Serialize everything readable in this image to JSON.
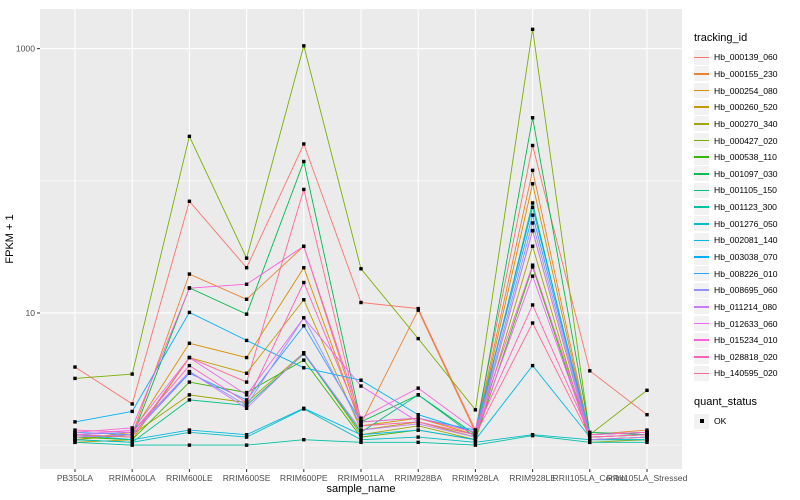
{
  "chart_data": {
    "type": "line",
    "title": "",
    "xlabel": "sample_name",
    "ylabel": "FPKM + 1",
    "y_scale": "log10",
    "ylim": [
      0.66,
      1995
    ],
    "y_ticks": [
      10,
      1000
    ],
    "y_tick_labels": [
      "10",
      "1000"
    ],
    "y_minor_gridlines": [
      1,
      100
    ],
    "grid": true,
    "legend_position": "right",
    "legend_title": "tracking_id",
    "quant_legend": {
      "title": "quant_status",
      "items": [
        "OK"
      ]
    },
    "point_shape": "filled-square",
    "x_categories": [
      "PB350LA",
      "RRIM600LA",
      "RRIM600LE",
      "RRIM600SE",
      "RRIM600PE",
      "RRIM901LA",
      "RRIM928BA",
      "RRIM928LA",
      "RRIM928LE",
      "RRII105LA_Control",
      "RRII105LA_Stressed"
    ],
    "series": [
      {
        "name": "Hb_000139_060",
        "color": "#F8766D",
        "values": [
          3.9,
          2.05,
          70,
          22,
          190,
          12,
          10.8,
          1.3,
          185,
          3.65,
          1.7
        ]
      },
      {
        "name": "Hb_000155_230",
        "color": "#EA8331",
        "values": [
          1.15,
          1.2,
          19.7,
          12.7,
          32,
          1.45,
          10.5,
          1.25,
          120,
          1.2,
          1.3
        ]
      },
      {
        "name": "Hb_000254_080",
        "color": "#D89000",
        "values": [
          1.1,
          1.25,
          5.9,
          4.6,
          22,
          1.4,
          1.6,
          1.2,
          95,
          1.15,
          1.2
        ]
      },
      {
        "name": "Hb_000260_520",
        "color": "#C09B00",
        "values": [
          1.05,
          1.1,
          4.6,
          3.5,
          12.6,
          1.3,
          1.5,
          1.15,
          42,
          1.1,
          1.15
        ]
      },
      {
        "name": "Hb_000270_340",
        "color": "#A3A500",
        "values": [
          1.1,
          1.2,
          2.4,
          2.1,
          5.0,
          1.2,
          1.4,
          1.1,
          32,
          1.05,
          1.1
        ]
      },
      {
        "name": "Hb_000427_020",
        "color": "#7CAE00",
        "values": [
          3.2,
          3.45,
          217,
          26,
          1050,
          21.6,
          6.4,
          1.85,
          1400,
          1.2,
          2.6
        ]
      },
      {
        "name": "Hb_000538_110",
        "color": "#39B600",
        "values": [
          1.15,
          1.1,
          3.0,
          2.5,
          4.4,
          1.15,
          1.3,
          1.1,
          22.3,
          1.1,
          1.15
        ]
      },
      {
        "name": "Hb_001097_030",
        "color": "#00BB4E",
        "values": [
          1.2,
          1.15,
          15.5,
          9.8,
          140,
          1.5,
          2.4,
          1.2,
          300,
          1.25,
          1.2
        ]
      },
      {
        "name": "Hb_001105_150",
        "color": "#00C087",
        "values": [
          1.1,
          1.05,
          2.2,
          2.0,
          4.9,
          1.25,
          2.4,
          1.15,
          68,
          1.1,
          1.1
        ]
      },
      {
        "name": "Hb_001123_300",
        "color": "#00C1A3",
        "values": [
          1.05,
          1.0,
          1.0,
          1.0,
          1.1,
          1.05,
          1.05,
          1.0,
          1.18,
          1.05,
          1.05
        ]
      },
      {
        "name": "Hb_001276_050",
        "color": "#00BFC4",
        "values": [
          1.1,
          1.05,
          1.25,
          1.15,
          1.88,
          1.1,
          1.15,
          1.05,
          1.2,
          1.1,
          1.1
        ]
      },
      {
        "name": "Hb_002081_140",
        "color": "#00BAE0",
        "values": [
          1.2,
          1.1,
          1.3,
          1.2,
          1.9,
          1.2,
          1.3,
          1.1,
          4.0,
          1.15,
          1.2
        ]
      },
      {
        "name": "Hb_003038_070",
        "color": "#00B0F6",
        "values": [
          1.5,
          1.8,
          10.1,
          6.2,
          3.85,
          3.1,
          1.7,
          1.25,
          63,
          1.2,
          1.25
        ]
      },
      {
        "name": "Hb_008226_010",
        "color": "#35A2FF",
        "values": [
          1.25,
          1.2,
          3.5,
          2.2,
          8.0,
          1.5,
          1.6,
          1.3,
          55,
          1.2,
          1.25
        ]
      },
      {
        "name": "Hb_008695_060",
        "color": "#9590FF",
        "values": [
          1.2,
          1.25,
          3.6,
          2.0,
          9.2,
          1.4,
          1.5,
          1.2,
          48,
          1.15,
          1.2
        ]
      },
      {
        "name": "Hb_011214_080",
        "color": "#C77CFF",
        "values": [
          1.15,
          1.2,
          3.6,
          1.9,
          5.0,
          1.3,
          1.45,
          1.15,
          42,
          1.1,
          1.15
        ]
      },
      {
        "name": "Hb_012633_060",
        "color": "#E76BF3",
        "values": [
          1.2,
          1.3,
          4.6,
          2.4,
          9.2,
          2.8,
          1.5,
          1.2,
          19,
          1.15,
          1.2
        ]
      },
      {
        "name": "Hb_015234_010",
        "color": "#FA62DB",
        "values": [
          1.25,
          1.35,
          15.4,
          16.5,
          32,
          1.6,
          2.7,
          1.3,
          23,
          1.2,
          1.25
        ]
      },
      {
        "name": "Hb_028818_020",
        "color": "#FF62BC",
        "values": [
          1.3,
          1.25,
          4.0,
          2.1,
          17,
          1.5,
          1.6,
          1.25,
          11.5,
          1.2,
          1.25
        ]
      },
      {
        "name": "Hb_140595_020",
        "color": "#FF6A98",
        "values": [
          1.2,
          1.15,
          4.6,
          3.0,
          86,
          1.4,
          1.5,
          1.2,
          8.4,
          1.15,
          1.2
        ]
      }
    ]
  },
  "colors": {
    "background": "#FFFFFF",
    "panel_bg": "#EBEBEB",
    "grid": "#FFFFFF",
    "axis_text": "#4D4D4D",
    "axis_title": "#000000",
    "tick_mark": "#333333",
    "point": "#000000",
    "legend_key_bg": "#F2F2F2"
  }
}
